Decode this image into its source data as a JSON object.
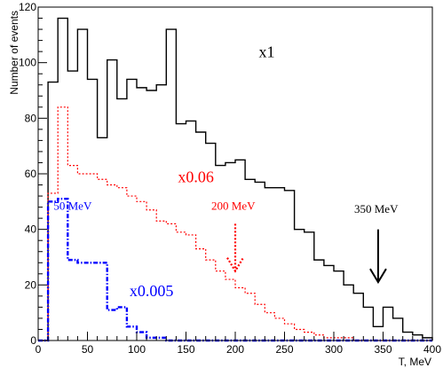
{
  "chart_data": {
    "type": "histogram",
    "xlabel": "T, MeV",
    "ylabel": "Number of events",
    "xlim": [
      0,
      400
    ],
    "ylim": [
      0,
      120
    ],
    "x_ticks": [
      0,
      50,
      100,
      150,
      200,
      250,
      300,
      350,
      400
    ],
    "x_tick_labels": [
      "0",
      "50",
      "100",
      "150",
      "200",
      "250",
      "300",
      "350",
      "400"
    ],
    "y_ticks": [
      0,
      20,
      40,
      60,
      80,
      100,
      120
    ],
    "y_tick_labels": [
      "0",
      "20",
      "40",
      "60",
      "80",
      "100",
      "120"
    ],
    "grid": false,
    "bin_edges": [
      0,
      10,
      20,
      30,
      40,
      50,
      60,
      70,
      80,
      90,
      100,
      110,
      120,
      130,
      140,
      150,
      160,
      170,
      180,
      190,
      200,
      210,
      220,
      230,
      240,
      250,
      260,
      270,
      280,
      290,
      300,
      310,
      320,
      330,
      340,
      350,
      360,
      370,
      380,
      390,
      400
    ],
    "series": [
      {
        "name": "x1",
        "color": "#000000",
        "style": "solid",
        "values": [
          0,
          93,
          116,
          97,
          112,
          94,
          73,
          101,
          87,
          94,
          91,
          90,
          92,
          112,
          78,
          79,
          75,
          71,
          63,
          64,
          65,
          58,
          57,
          55,
          55,
          54,
          40,
          39,
          29,
          27,
          25,
          20,
          17,
          12,
          5,
          12,
          8,
          3,
          2,
          1
        ]
      },
      {
        "name": "x0.06",
        "color": "#ff0000",
        "style": "dotted",
        "values": [
          0,
          53,
          84,
          63,
          60,
          60,
          58,
          56,
          55,
          52,
          50,
          47,
          43,
          42,
          39,
          38,
          33,
          29,
          25,
          22,
          19,
          17,
          13,
          10,
          8,
          6,
          4,
          3,
          2,
          1,
          1,
          1,
          0,
          0,
          0,
          0,
          0,
          0,
          0,
          0
        ]
      },
      {
        "name": "x0.005",
        "color": "#0000ff",
        "style": "dashdot",
        "values": [
          0,
          50,
          51,
          29,
          28,
          28,
          28,
          11,
          12,
          5,
          3,
          1,
          1,
          0,
          0,
          0,
          0,
          0,
          0,
          0,
          0,
          0,
          0,
          0,
          0,
          0,
          0,
          0,
          0,
          0,
          0,
          0,
          0,
          0,
          0,
          0,
          0,
          0,
          0,
          0
        ]
      }
    ],
    "annotations": [
      {
        "text": "x1",
        "color": "#000000",
        "x": 232,
        "y": 102
      },
      {
        "text": "x0.06",
        "color": "#ff0000",
        "x": 160,
        "y": 57
      },
      {
        "text": "x0.005",
        "color": "#0000ff",
        "x": 115,
        "y": 16
      },
      {
        "text": "50 MeV",
        "color": "#0000ff",
        "x": 35,
        "y": 47
      },
      {
        "text": "200 MeV",
        "color": "#ff0000",
        "x": 198,
        "y": 47
      },
      {
        "text": "350 MeV",
        "color": "#000000",
        "x": 343,
        "y": 46
      }
    ],
    "arrows": [
      {
        "color": "#ff0000",
        "style": "dotted",
        "x": 200,
        "y_from": 42,
        "y_to": 25
      },
      {
        "color": "#000000",
        "style": "solid",
        "x": 345,
        "y_from": 40,
        "y_to": 21
      }
    ]
  }
}
